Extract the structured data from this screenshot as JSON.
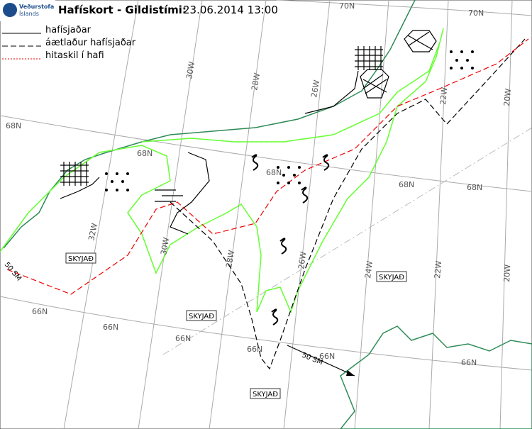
{
  "header": {
    "logo": [
      "Veðurstofa",
      "Íslands"
    ],
    "title": "Hafískort - Gildistími:",
    "valid_time": "23.06.2014 13:00"
  },
  "legend": [
    {
      "label": "hafísjaðar"
    },
    {
      "label": "áætlaður hafísjaðar"
    },
    {
      "label": "hitaskil í hafi"
    }
  ],
  "grid_labels": [
    "70N",
    "70N",
    "68N",
    "68N",
    "68N",
    "68N",
    "68N",
    "66N",
    "66N",
    "66N",
    "66N",
    "66N",
    "66N",
    "30W",
    "28W",
    "26W",
    "22W",
    "20W",
    "32W",
    "30W",
    "28W",
    "26W",
    "24W",
    "22W",
    "20W"
  ],
  "areas": [
    "SKYJAÐ",
    "SKYJAÐ",
    "SKYJAÐ",
    "SKYJAÐ"
  ],
  "distance_labels": [
    "50 SM",
    "50 SM"
  ]
}
